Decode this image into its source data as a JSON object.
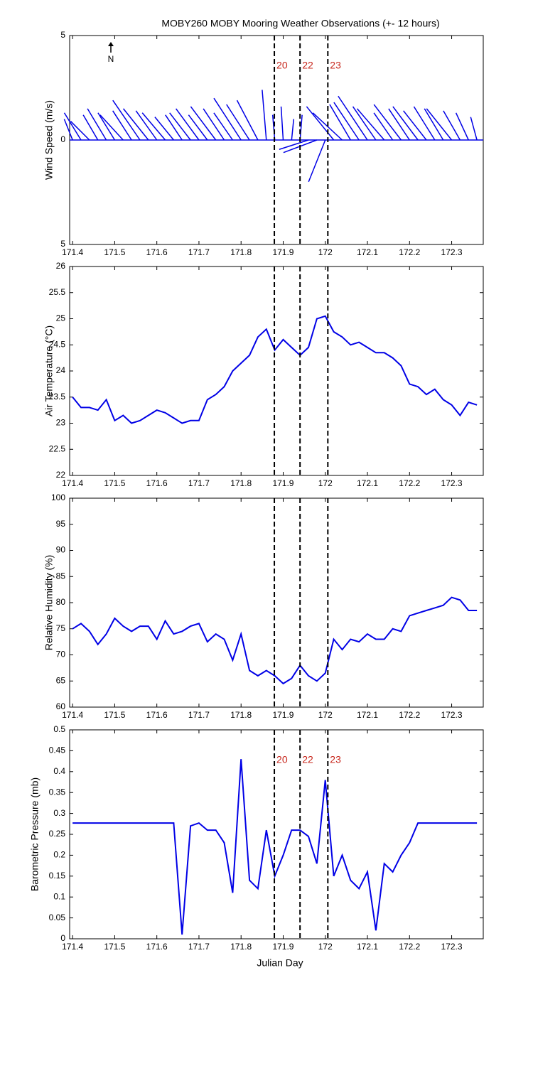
{
  "chart_data": [
    {
      "type": "quiver",
      "title": "MOBY260 MOBY Mooring Weather Observations (+- 12 hours)",
      "ylabel": "Wind Speed (m/s)",
      "north_label": "N",
      "color": "#0000e6",
      "xlim": [
        171.393,
        172.375
      ],
      "xticks": [
        171.4,
        171.5,
        171.6,
        171.7,
        171.8,
        171.9,
        172,
        172.1,
        172.2,
        172.3
      ],
      "ylim": [
        -5,
        5
      ],
      "yticks": [
        {
          "value": -5,
          "label": "5"
        },
        0,
        5
      ],
      "event_lines": [
        171.879,
        171.94,
        172.006
      ],
      "event_labels": [
        "20",
        "22",
        "23"
      ],
      "x": [
        171.4,
        171.42,
        171.44,
        171.46,
        171.48,
        171.5,
        171.52,
        171.54,
        171.56,
        171.58,
        171.6,
        171.62,
        171.64,
        171.66,
        171.68,
        171.7,
        171.72,
        171.74,
        171.76,
        171.78,
        171.8,
        171.82,
        171.84,
        171.86,
        171.88,
        171.9,
        171.92,
        171.94,
        171.96,
        171.98,
        172.0,
        172.02,
        172.04,
        172.06,
        172.08,
        172.1,
        172.12,
        172.14,
        172.16,
        172.18,
        172.2,
        172.22,
        172.24,
        172.26,
        172.28,
        172.3,
        172.32,
        172.34,
        172.36
      ],
      "u": [
        -0.4,
        -0.8,
        -0.9,
        -0.7,
        -0.9,
        -0.8,
        -1.1,
        -0.9,
        -1.3,
        -1.2,
        -1.0,
        -1.1,
        -0.9,
        -0.8,
        -1.0,
        -1.1,
        -0.9,
        -1.2,
        -1.0,
        -0.9,
        -1.3,
        -1.1,
        -1.0,
        -0.2,
        -0.1,
        -0.1,
        0.1,
        0.1,
        -1.4,
        -1.6,
        -0.8,
        -1.3,
        -1.4,
        -1.0,
        -1.2,
        -1.4,
        -1.1,
        -1.3,
        -0.9,
        -1.3,
        -1.0,
        -1.2,
        -1.1,
        -1.0,
        -0.9,
        -1.2,
        -0.8,
        -0.6,
        -0.3
      ],
      "v": [
        1.0,
        1.3,
        0.9,
        1.2,
        1.5,
        1.3,
        1.2,
        1.4,
        1.9,
        1.5,
        1.4,
        1.3,
        1.1,
        1.2,
        1.3,
        1.5,
        1.2,
        1.6,
        1.5,
        1.3,
        2.0,
        1.7,
        1.9,
        2.4,
        1.2,
        1.6,
        1.0,
        1.2,
        -0.45,
        -0.6,
        -2.0,
        1.6,
        1.3,
        1.7,
        1.8,
        2.1,
        1.6,
        1.5,
        1.3,
        1.7,
        1.5,
        1.6,
        1.4,
        1.6,
        1.5,
        1.5,
        1.4,
        1.3,
        1.1
      ]
    },
    {
      "type": "line",
      "ylabel": "Air Temperature (°C)",
      "color": "#0000e6",
      "xlim": [
        171.393,
        172.375
      ],
      "xticks": [
        171.4,
        171.5,
        171.6,
        171.7,
        171.8,
        171.9,
        172,
        172.1,
        172.2,
        172.3
      ],
      "ylim": [
        22,
        26
      ],
      "yticks": [
        22,
        22.5,
        23,
        23.5,
        24,
        24.5,
        25,
        25.5,
        26
      ],
      "event_lines": [
        171.879,
        171.94,
        172.006
      ],
      "x": [
        171.4,
        171.42,
        171.44,
        171.46,
        171.48,
        171.5,
        171.52,
        171.54,
        171.56,
        171.58,
        171.6,
        171.62,
        171.64,
        171.66,
        171.68,
        171.7,
        171.72,
        171.74,
        171.76,
        171.78,
        171.8,
        171.82,
        171.84,
        171.86,
        171.88,
        171.9,
        171.92,
        171.94,
        171.96,
        171.98,
        172.0,
        172.02,
        172.04,
        172.06,
        172.08,
        172.1,
        172.12,
        172.14,
        172.16,
        172.18,
        172.2,
        172.22,
        172.24,
        172.26,
        172.28,
        172.3,
        172.32,
        172.34,
        172.36
      ],
      "values": [
        23.5,
        23.3,
        23.3,
        23.25,
        23.45,
        23.05,
        23.15,
        23.0,
        23.05,
        23.15,
        23.25,
        23.2,
        23.1,
        23.0,
        23.05,
        23.05,
        23.45,
        23.55,
        23.7,
        24.0,
        24.15,
        24.3,
        24.65,
        24.8,
        24.4,
        24.6,
        24.45,
        24.3,
        24.45,
        25.0,
        25.05,
        24.75,
        24.65,
        24.5,
        24.55,
        24.45,
        24.35,
        24.35,
        24.25,
        24.1,
        23.75,
        23.7,
        23.55,
        23.65,
        23.45,
        23.35,
        23.15,
        23.4,
        23.35
      ]
    },
    {
      "type": "line",
      "ylabel": "Relative Humidity (%)",
      "color": "#0000e6",
      "xlim": [
        171.393,
        172.375
      ],
      "xticks": [
        171.4,
        171.5,
        171.6,
        171.7,
        171.8,
        171.9,
        172,
        172.1,
        172.2,
        172.3
      ],
      "ylim": [
        60,
        100
      ],
      "yticks": [
        60,
        65,
        70,
        75,
        80,
        85,
        90,
        95,
        100
      ],
      "event_lines": [
        171.879,
        171.94,
        172.006
      ],
      "x": [
        171.4,
        171.42,
        171.44,
        171.46,
        171.48,
        171.5,
        171.52,
        171.54,
        171.56,
        171.58,
        171.6,
        171.62,
        171.64,
        171.66,
        171.68,
        171.7,
        171.72,
        171.74,
        171.76,
        171.78,
        171.8,
        171.82,
        171.84,
        171.86,
        171.88,
        171.9,
        171.92,
        171.94,
        171.96,
        171.98,
        172.0,
        172.02,
        172.04,
        172.06,
        172.08,
        172.1,
        172.12,
        172.14,
        172.16,
        172.18,
        172.2,
        172.22,
        172.24,
        172.26,
        172.28,
        172.3,
        172.32,
        172.34,
        172.36
      ],
      "values": [
        75,
        76,
        74.5,
        72,
        74,
        77,
        75.5,
        74.5,
        75.5,
        75.5,
        73,
        76.5,
        74,
        74.5,
        75.5,
        76,
        72.5,
        74,
        73,
        69,
        74,
        67,
        66,
        67,
        66,
        64.5,
        65.5,
        68,
        66,
        65,
        66.5,
        73,
        71,
        73,
        72.5,
        74,
        73,
        73,
        75,
        74.5,
        77.5,
        78,
        78.5,
        79,
        79.5,
        81,
        80.5,
        78.5,
        78.5
      ]
    },
    {
      "type": "line",
      "ylabel": "Barometric Pressure (mb)",
      "xlabel": "Julian Day",
      "color": "#0000e6",
      "xlim": [
        171.393,
        172.375
      ],
      "xticks": [
        171.4,
        171.5,
        171.6,
        171.7,
        171.8,
        171.9,
        172,
        172.1,
        172.2,
        172.3
      ],
      "ylim": [
        0,
        0.5
      ],
      "yticks": [
        0,
        0.05,
        0.1,
        0.15,
        0.2,
        0.25,
        0.3,
        0.35,
        0.4,
        0.45,
        0.5
      ],
      "event_lines": [
        171.879,
        171.94,
        172.006
      ],
      "event_labels": [
        "20",
        "22",
        "23"
      ],
      "x": [
        171.4,
        171.42,
        171.44,
        171.46,
        171.48,
        171.5,
        171.52,
        171.54,
        171.56,
        171.58,
        171.6,
        171.62,
        171.64,
        171.66,
        171.68,
        171.7,
        171.72,
        171.74,
        171.76,
        171.78,
        171.8,
        171.82,
        171.84,
        171.86,
        171.88,
        171.9,
        171.92,
        171.94,
        171.96,
        171.98,
        172.0,
        172.02,
        172.04,
        172.06,
        172.08,
        172.1,
        172.12,
        172.14,
        172.16,
        172.18,
        172.2,
        172.22,
        172.24,
        172.26,
        172.28,
        172.3,
        172.32,
        172.34,
        172.36
      ],
      "values": [
        0.277,
        0.277,
        0.277,
        0.277,
        0.277,
        0.277,
        0.277,
        0.277,
        0.277,
        0.277,
        0.277,
        0.277,
        0.277,
        0.01,
        0.27,
        0.277,
        0.26,
        0.26,
        0.23,
        0.11,
        0.43,
        0.14,
        0.12,
        0.26,
        0.15,
        0.2,
        0.26,
        0.26,
        0.245,
        0.18,
        0.38,
        0.15,
        0.2,
        0.14,
        0.12,
        0.16,
        0.02,
        0.18,
        0.16,
        0.2,
        0.23,
        0.277,
        0.277,
        0.277,
        0.277,
        0.277,
        0.277,
        0.277,
        0.277
      ]
    }
  ]
}
